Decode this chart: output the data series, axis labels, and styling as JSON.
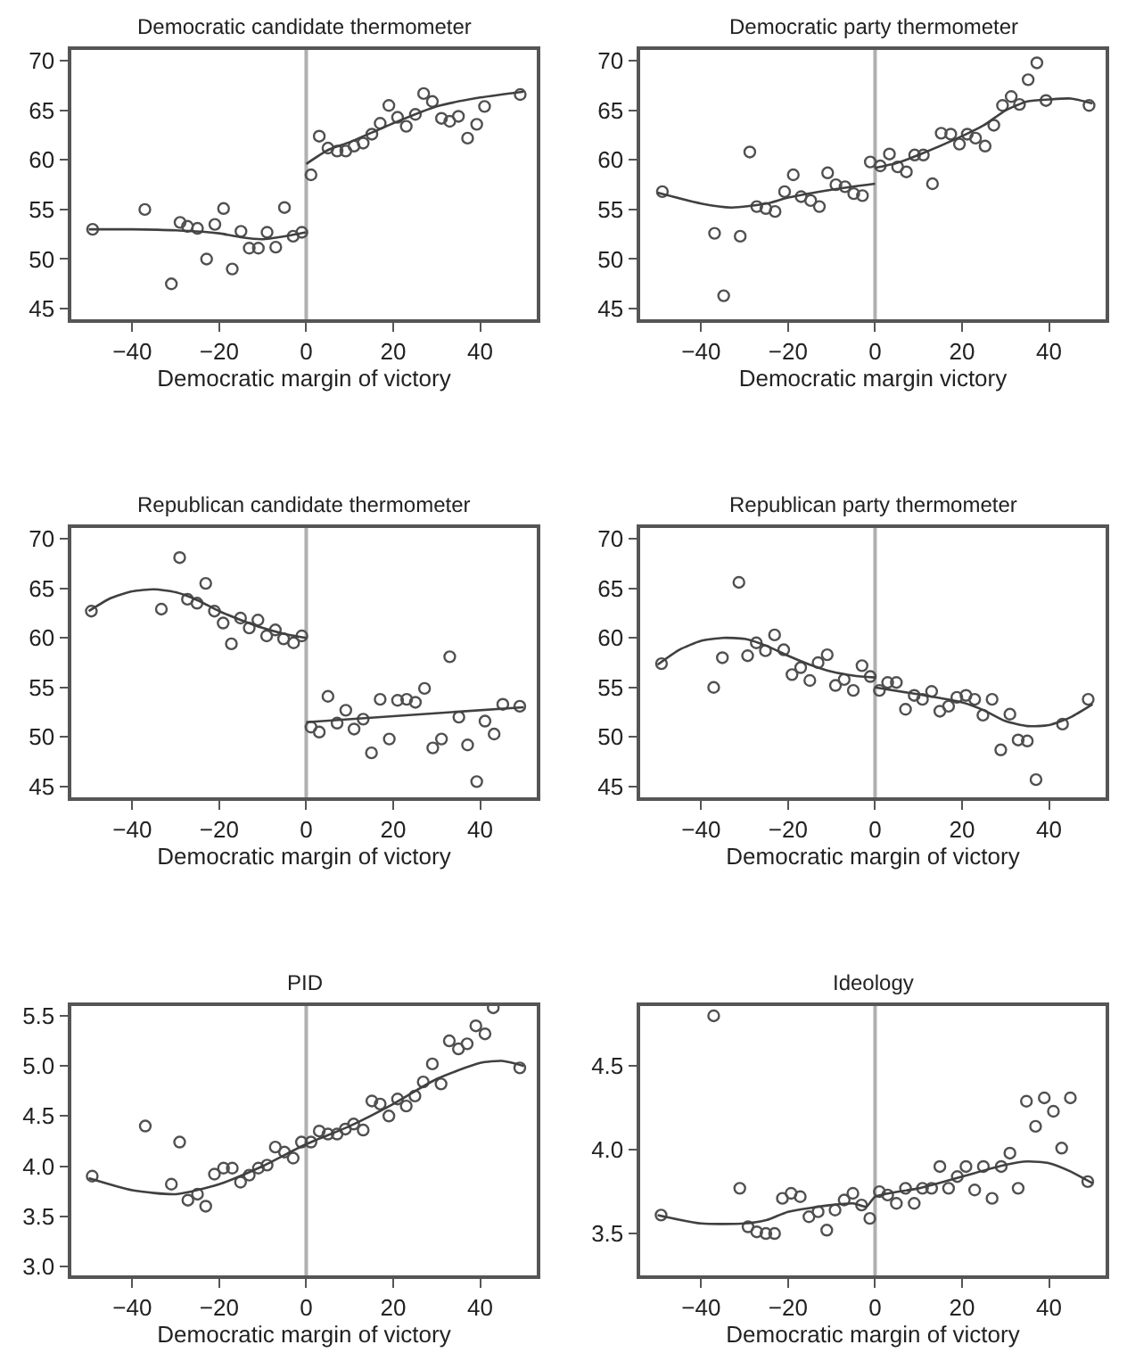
{
  "chart_data": [
    {
      "type": "scatter",
      "title": "Democratic candidate thermometer",
      "xlabel": "Democratic margin of victory",
      "xlim": [
        -54,
        53
      ],
      "xticks": [
        -40,
        -20,
        0,
        20,
        40
      ],
      "ylim": [
        43.9,
        71.1
      ],
      "yticks": [
        45,
        50,
        55,
        60,
        65,
        70
      ],
      "grid": false,
      "ref_lines": [
        {
          "axis": "x",
          "value": 0,
          "color": "#b0b0b0"
        }
      ],
      "series": [
        {
          "type": "scatter",
          "marker": "circle",
          "color": "#505050",
          "x": [
            -49.1,
            -37.1,
            -31,
            -29,
            -27.3,
            -25,
            -22.9,
            -21,
            -19,
            -17,
            -15,
            -13.1,
            -11,
            -9,
            -7,
            -5,
            -3,
            -1
          ],
          "values": [
            53.0,
            55.0,
            47.5,
            53.7,
            53.3,
            53.1,
            50.0,
            53.5,
            55.1,
            49.0,
            52.8,
            51.1,
            51.1,
            52.7,
            51.2,
            55.2,
            52.3,
            52.7
          ]
        },
        {
          "type": "scatter",
          "marker": "circle",
          "color": "#505050",
          "x": [
            1.1,
            3,
            5,
            7.1,
            9.1,
            11,
            13.1,
            15.1,
            17,
            19,
            21,
            23,
            25.1,
            27,
            29,
            31.1,
            33,
            35,
            37.1,
            39.2,
            41,
            49.2
          ],
          "values": [
            58.5,
            62.4,
            61.2,
            60.9,
            60.9,
            61.4,
            61.7,
            62.6,
            63.7,
            65.5,
            64.3,
            63.4,
            64.6,
            66.7,
            65.9,
            64.2,
            63.9,
            64.4,
            62.2,
            63.6,
            65.4,
            66.6
          ]
        },
        {
          "type": "line",
          "marker": "none",
          "color": "#404040",
          "x": [
            -50,
            -40,
            -30,
            -20,
            -15,
            -10,
            -5,
            0
          ],
          "values": [
            53.0,
            53.0,
            52.9,
            52.6,
            52.2,
            52.0,
            52.3,
            52.7
          ]
        },
        {
          "type": "line",
          "marker": "none",
          "color": "#404040",
          "x": [
            0,
            5,
            10,
            20,
            30,
            40,
            50
          ],
          "values": [
            59.6,
            61.0,
            61.8,
            63.7,
            65.4,
            66.3,
            66.9
          ]
        }
      ]
    },
    {
      "type": "scatter",
      "title": "Democratic party thermometer",
      "xlabel": "Democratic margin victory",
      "xlim": [
        -54,
        53
      ],
      "xticks": [
        -40,
        -20,
        0,
        20,
        40
      ],
      "ylim": [
        43.9,
        71.1
      ],
      "yticks": [
        45,
        50,
        55,
        60,
        65,
        70
      ],
      "grid": false,
      "ref_lines": [
        {
          "axis": "x",
          "value": 0,
          "color": "#b0b0b0"
        }
      ],
      "series": [
        {
          "type": "scatter",
          "marker": "circle",
          "color": "#505050",
          "x": [
            -48.9,
            -36.9,
            -34.8,
            -31,
            -28.8,
            -27.2,
            -25.1,
            -23,
            -20.8,
            -18.8,
            -17,
            -14.8,
            -12.8,
            -10.9,
            -9,
            -6.9,
            -4.9,
            -2.9,
            -1.1
          ],
          "values": [
            56.8,
            52.6,
            46.3,
            52.3,
            60.8,
            55.3,
            55.1,
            54.8,
            56.8,
            58.5,
            56.3,
            55.9,
            55.3,
            58.7,
            57.5,
            57.3,
            56.6,
            56.4,
            59.8
          ]
        },
        {
          "type": "scatter",
          "marker": "circle",
          "color": "#505050",
          "x": [
            1.2,
            3.3,
            5.2,
            7.2,
            9.1,
            11.1,
            13.2,
            15.2,
            17.4,
            19.4,
            21.2,
            23.1,
            25.3,
            27.3,
            29.3,
            31.3,
            33.2,
            35.2,
            37.2,
            39.3,
            49.2
          ],
          "values": [
            59.4,
            60.6,
            59.3,
            58.8,
            60.5,
            60.5,
            57.6,
            62.7,
            62.6,
            61.6,
            62.6,
            62.2,
            61.4,
            63.5,
            65.5,
            66.4,
            65.6,
            68.1,
            69.8,
            66.0,
            65.5
          ]
        },
        {
          "type": "line",
          "marker": "none",
          "color": "#404040",
          "x": [
            -50,
            -40,
            -33,
            -25,
            -20,
            -10,
            0
          ],
          "values": [
            56.7,
            55.6,
            55.2,
            55.6,
            56.2,
            57.0,
            57.6
          ]
        },
        {
          "type": "line",
          "marker": "none",
          "color": "#404040",
          "x": [
            0,
            5,
            10,
            20,
            25,
            30,
            35,
            40,
            45,
            50
          ],
          "values": [
            59.2,
            59.7,
            60.5,
            62.4,
            63.5,
            65.0,
            65.9,
            66.1,
            66.2,
            65.7
          ]
        }
      ]
    },
    {
      "type": "scatter",
      "title": "Republican candidate thermometer",
      "xlabel": "Democratic margin of victory",
      "xlim": [
        -54,
        53
      ],
      "xticks": [
        -40,
        -20,
        0,
        20,
        40
      ],
      "ylim": [
        43.9,
        71.1
      ],
      "yticks": [
        45,
        50,
        55,
        60,
        65,
        70
      ],
      "grid": false,
      "ref_lines": [
        {
          "axis": "x",
          "value": 0,
          "color": "#b0b0b0"
        }
      ],
      "series": [
        {
          "type": "scatter",
          "marker": "circle",
          "color": "#505050",
          "x": [
            -49.4,
            -33.3,
            -29.1,
            -27.3,
            -25.1,
            -23.1,
            -21.1,
            -19.1,
            -17.2,
            -15.1,
            -13.1,
            -11.1,
            -9.1,
            -7.1,
            -5.2,
            -2.9,
            -1
          ],
          "values": [
            62.7,
            62.9,
            68.1,
            63.9,
            63.5,
            65.5,
            62.7,
            61.5,
            59.4,
            62.0,
            61.0,
            61.8,
            60.2,
            60.8,
            59.9,
            59.5,
            60.2
          ]
        },
        {
          "type": "scatter",
          "marker": "circle",
          "color": "#505050",
          "x": [
            1.1,
            3,
            5,
            7.1,
            9.1,
            11,
            13.1,
            15,
            17,
            19.1,
            21,
            23.1,
            25.1,
            27.2,
            29.1,
            31.1,
            33,
            35.1,
            37.1,
            39.2,
            41.1,
            43.2,
            45.2,
            49.1
          ],
          "values": [
            51.0,
            50.5,
            54.1,
            51.4,
            52.7,
            50.8,
            51.8,
            48.4,
            53.8,
            49.8,
            53.7,
            53.8,
            53.5,
            54.9,
            48.9,
            49.8,
            58.1,
            52.0,
            49.2,
            45.5,
            51.6,
            50.3,
            53.3,
            53.1
          ]
        },
        {
          "type": "line",
          "marker": "none",
          "color": "#404040",
          "x": [
            -50,
            -45,
            -40,
            -35,
            -30,
            -25,
            -20,
            -15,
            -10,
            -5,
            0
          ],
          "values": [
            62.7,
            64.0,
            64.7,
            64.9,
            64.6,
            63.8,
            62.7,
            61.8,
            61.0,
            60.4,
            60.0
          ]
        },
        {
          "type": "line",
          "marker": "none",
          "color": "#404040",
          "x": [
            0,
            50
          ],
          "values": [
            51.5,
            53.0
          ]
        }
      ]
    },
    {
      "type": "scatter",
      "title": "Republican party thermometer",
      "xlabel": "Democratic margin of victory",
      "xlim": [
        -54,
        53
      ],
      "xticks": [
        -40,
        -20,
        0,
        20,
        40
      ],
      "ylim": [
        43.9,
        71.1
      ],
      "yticks": [
        45,
        50,
        55,
        60,
        65,
        70
      ],
      "grid": false,
      "ref_lines": [
        {
          "axis": "x",
          "value": 0,
          "color": "#b0b0b0"
        }
      ],
      "series": [
        {
          "type": "scatter",
          "marker": "circle",
          "color": "#505050",
          "x": [
            -49.1,
            -37.1,
            -35.1,
            -31.3,
            -29.3,
            -27.3,
            -25.2,
            -23.1,
            -21,
            -19.1,
            -17.1,
            -15,
            -13.1,
            -11,
            -9.1,
            -7.1,
            -5,
            -3,
            -1.1
          ],
          "values": [
            57.4,
            55.0,
            58.0,
            65.6,
            58.2,
            59.5,
            58.7,
            60.3,
            58.8,
            56.3,
            57.0,
            55.7,
            57.5,
            58.3,
            55.2,
            55.8,
            54.7,
            57.2,
            56.1
          ]
        },
        {
          "type": "scatter",
          "marker": "circle",
          "color": "#505050",
          "x": [
            1,
            2.9,
            4.9,
            7,
            9,
            10.9,
            13,
            14.9,
            16.9,
            18.8,
            20.9,
            22.9,
            24.8,
            26.9,
            28.9,
            31,
            32.9,
            35,
            37,
            43.1,
            49
          ],
          "values": [
            54.7,
            55.5,
            55.5,
            52.8,
            54.2,
            53.8,
            54.6,
            52.6,
            53.1,
            54.0,
            54.2,
            53.8,
            52.2,
            53.8,
            48.7,
            52.3,
            49.7,
            49.6,
            45.7,
            51.3,
            53.8
          ]
        },
        {
          "type": "line",
          "marker": "none",
          "color": "#404040",
          "x": [
            -50,
            -45,
            -40,
            -35,
            -30,
            -25,
            -20,
            -15,
            -10,
            -5,
            0
          ],
          "values": [
            57.3,
            58.8,
            59.7,
            60.0,
            59.9,
            59.2,
            58.2,
            57.3,
            56.6,
            56.2,
            56.0
          ]
        },
        {
          "type": "line",
          "marker": "none",
          "color": "#404040",
          "x": [
            0,
            10,
            20,
            25,
            30,
            35,
            40,
            45,
            50
          ],
          "values": [
            55.0,
            54.3,
            53.5,
            52.7,
            51.6,
            51.1,
            51.2,
            52.0,
            53.3
          ]
        }
      ]
    },
    {
      "type": "scatter",
      "title": "PID",
      "xlabel": "Democratic margin of victory",
      "xlim": [
        -54,
        53
      ],
      "xticks": [
        -40,
        -20,
        0,
        20,
        40
      ],
      "ylim": [
        2.91,
        5.6
      ],
      "yticks": [
        {
          "value": 3,
          "label": "3.0"
        },
        3.5,
        {
          "value": 4,
          "label": "4.0"
        },
        4.5,
        {
          "value": 5,
          "label": "5.0"
        },
        5.5
      ],
      "grid": false,
      "ref_lines": [
        {
          "axis": "x",
          "value": 0,
          "color": "#b0b0b0"
        }
      ],
      "series": [
        {
          "type": "scatter",
          "marker": "circle",
          "color": "#505050",
          "x": [
            -49.2,
            -37,
            -31,
            -29.1,
            -27.2,
            -25,
            -23.1,
            -21.1,
            -19,
            -17,
            -15.1,
            -13.1,
            -11,
            -9,
            -7.1,
            -5,
            -3,
            -1.1,
            1.1,
            3,
            5,
            7.1,
            9,
            10.9,
            13.1,
            15.1,
            17,
            19,
            21,
            23,
            25,
            26.9,
            29,
            31,
            32.9,
            35,
            37,
            39,
            41.1,
            43,
            49.1
          ],
          "values": [
            3.9,
            4.4,
            3.82,
            4.24,
            3.66,
            3.72,
            3.6,
            3.92,
            3.98,
            3.98,
            3.84,
            3.91,
            3.98,
            4.01,
            4.19,
            4.14,
            4.08,
            4.24,
            4.24,
            4.35,
            4.32,
            4.32,
            4.37,
            4.42,
            4.36,
            4.65,
            4.62,
            4.5,
            4.67,
            4.6,
            4.7,
            4.84,
            5.02,
            4.82,
            5.25,
            5.17,
            5.22,
            5.4,
            5.32,
            5.58,
            4.98
          ]
        },
        {
          "type": "line",
          "marker": "none",
          "color": "#404040",
          "x": [
            -50,
            -40,
            -30,
            -20,
            -10,
            0,
            10,
            20,
            30,
            40,
            45,
            50
          ],
          "values": [
            3.88,
            3.76,
            3.72,
            3.82,
            4.0,
            4.22,
            4.4,
            4.62,
            4.87,
            5.03,
            5.05,
            5.0
          ]
        }
      ]
    },
    {
      "type": "scatter",
      "title": "Ideology",
      "xlabel": "Democratic margin of victory",
      "xlim": [
        -54,
        53
      ],
      "xticks": [
        -40,
        -20,
        0,
        20,
        40
      ],
      "ylim": [
        3.25,
        4.86
      ],
      "yticks": [
        3.5,
        {
          "value": 4,
          "label": "4.0"
        },
        4.5
      ],
      "grid": false,
      "ref_lines": [
        {
          "axis": "x",
          "value": 0,
          "color": "#b0b0b0"
        }
      ],
      "series": [
        {
          "type": "scatter",
          "marker": "circle",
          "color": "#505050",
          "x": [
            -49.2,
            -37.1,
            -31.1,
            -29.2,
            -27.2,
            -25.1,
            -23.1,
            -21.3,
            -19.3,
            -17.2,
            -15.2,
            -13.1,
            -11.1,
            -9.2,
            -7.1,
            -5.1,
            -3.1,
            -1.2,
            1,
            2.9,
            4.9,
            7,
            9,
            10.9,
            13,
            14.9,
            16.9,
            18.9,
            20.9,
            22.9,
            24.9,
            26.9,
            29,
            31,
            32.9,
            34.8,
            36.9,
            38.9,
            41,
            42.9,
            44.9,
            48.9
          ],
          "values": [
            3.61,
            4.8,
            3.77,
            3.54,
            3.51,
            3.5,
            3.5,
            3.71,
            3.74,
            3.72,
            3.6,
            3.63,
            3.52,
            3.64,
            3.7,
            3.74,
            3.67,
            3.59,
            3.75,
            3.73,
            3.68,
            3.77,
            3.68,
            3.77,
            3.77,
            3.9,
            3.77,
            3.84,
            3.9,
            3.76,
            3.9,
            3.71,
            3.9,
            3.98,
            3.77,
            4.29,
            4.14,
            4.31,
            4.23,
            4.01,
            4.31,
            3.81
          ]
        },
        {
          "type": "line",
          "marker": "none",
          "color": "#404040",
          "x": [
            -50,
            -40,
            -30,
            -25,
            -20,
            -10,
            -5,
            -2,
            0,
            10,
            20,
            30,
            35,
            40,
            45,
            50
          ],
          "values": [
            3.61,
            3.56,
            3.56,
            3.58,
            3.63,
            3.67,
            3.68,
            3.66,
            3.72,
            3.77,
            3.84,
            3.91,
            3.93,
            3.92,
            3.87,
            3.8
          ]
        }
      ]
    }
  ]
}
